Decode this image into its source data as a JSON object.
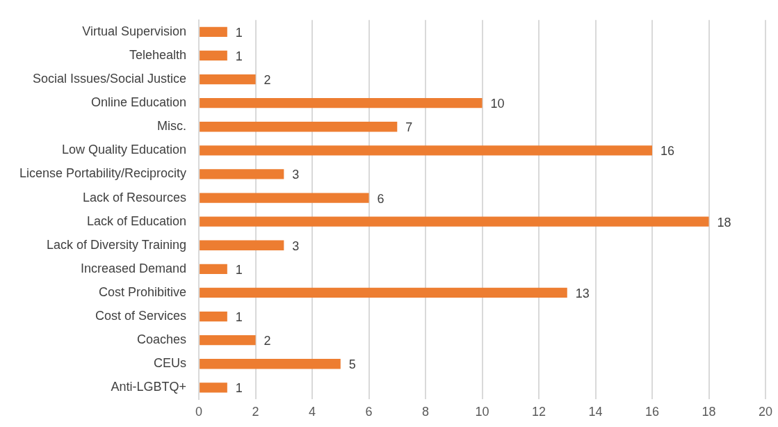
{
  "chart_data": {
    "type": "bar",
    "orientation": "horizontal",
    "categories": [
      "Virtual Supervision",
      "Telehealth",
      "Social Issues/Social Justice",
      "Online Education",
      "Misc.",
      "Low Quality Education",
      "License Portability/Reciprocity",
      "Lack of Resources",
      "Lack of Education",
      "Lack of Diversity Training",
      "Increased Demand",
      "Cost Prohibitive",
      "Cost of Services",
      "Coaches",
      "CEUs",
      "Anti-LGBTQ+"
    ],
    "values": [
      1,
      1,
      2,
      10,
      7,
      16,
      3,
      6,
      18,
      3,
      1,
      13,
      1,
      2,
      5,
      1
    ],
    "color": "#ed7d31",
    "xlim": [
      0,
      20
    ],
    "xticks": [
      0,
      2,
      4,
      6,
      8,
      10,
      12,
      14,
      16,
      18,
      20
    ],
    "grid": "x",
    "data_labels": true,
    "legend": false
  }
}
